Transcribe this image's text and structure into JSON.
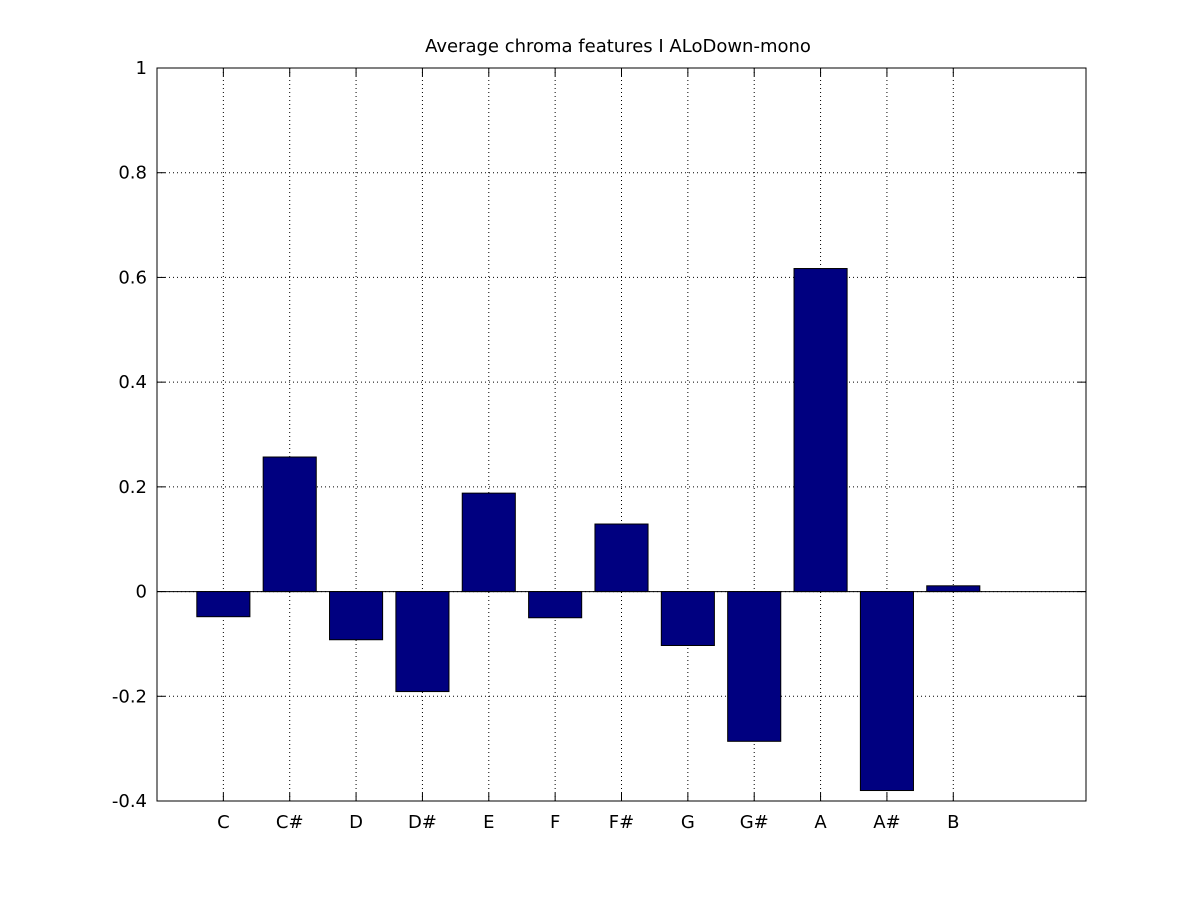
{
  "chart_data": {
    "type": "bar",
    "title": "Average chroma features I ALoDown-mono",
    "xlabel": "",
    "ylabel": "",
    "categories": [
      "C",
      "C#",
      "D",
      "D#",
      "E",
      "F",
      "F#",
      "G",
      "G#",
      "A",
      "A#",
      "B"
    ],
    "values": [
      -0.048,
      0.257,
      -0.092,
      -0.191,
      0.188,
      -0.05,
      0.129,
      -0.103,
      -0.286,
      0.617,
      -0.38,
      0.011
    ],
    "xlim": [
      0,
      14
    ],
    "ylim": [
      -0.4,
      1
    ],
    "yticks": [
      -0.4,
      -0.2,
      0,
      0.2,
      0.4,
      0.6,
      0.8,
      1
    ],
    "ytick_labels": [
      "-0.4",
      "-0.2",
      "0",
      "0.2",
      "0.4",
      "0.6",
      "0.8",
      "1"
    ],
    "grid": true,
    "bar_color": "#000080",
    "legend": "none"
  }
}
